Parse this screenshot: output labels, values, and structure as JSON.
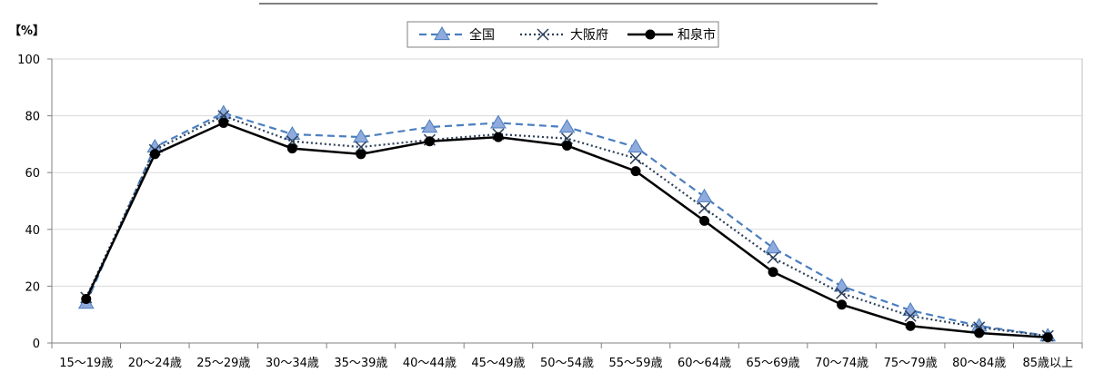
{
  "chart_data": {
    "type": "line",
    "unit_label": "【%】",
    "categories": [
      "15～19歳",
      "20～24歳",
      "25～29歳",
      "30～34歳",
      "35～39歳",
      "40～44歳",
      "45～49歳",
      "50～54歳",
      "55～59歳",
      "60～64歳",
      "65～69歳",
      "70～74歳",
      "75～79歳",
      "80～84歳",
      "85歳以上"
    ],
    "ylim": [
      0,
      100
    ],
    "yticks": [
      0,
      20,
      40,
      60,
      80,
      100
    ],
    "grid": true,
    "legend_position": "top-center",
    "series": [
      {
        "name": "全国",
        "color": "#4a7ebf",
        "line_style": "dashed",
        "marker": "triangle",
        "values": [
          14.0,
          69.0,
          81.0,
          73.5,
          72.5,
          76.0,
          77.5,
          76.0,
          69.0,
          51.5,
          33.5,
          20.0,
          11.5,
          6.0,
          2.5
        ]
      },
      {
        "name": "大阪府",
        "color": "#2b3f5a",
        "line_style": "dotted",
        "marker": "x",
        "values": [
          16.0,
          68.0,
          80.0,
          71.0,
          69.0,
          71.5,
          73.5,
          72.0,
          65.0,
          47.5,
          30.0,
          17.5,
          9.5,
          5.5,
          2.5
        ]
      },
      {
        "name": "和泉市",
        "color": "#000000",
        "line_style": "solid",
        "marker": "circle",
        "values": [
          15.5,
          66.5,
          77.5,
          68.5,
          66.5,
          71.0,
          72.5,
          69.5,
          60.5,
          43.0,
          25.0,
          13.5,
          6.0,
          3.5,
          2.0
        ]
      }
    ]
  }
}
